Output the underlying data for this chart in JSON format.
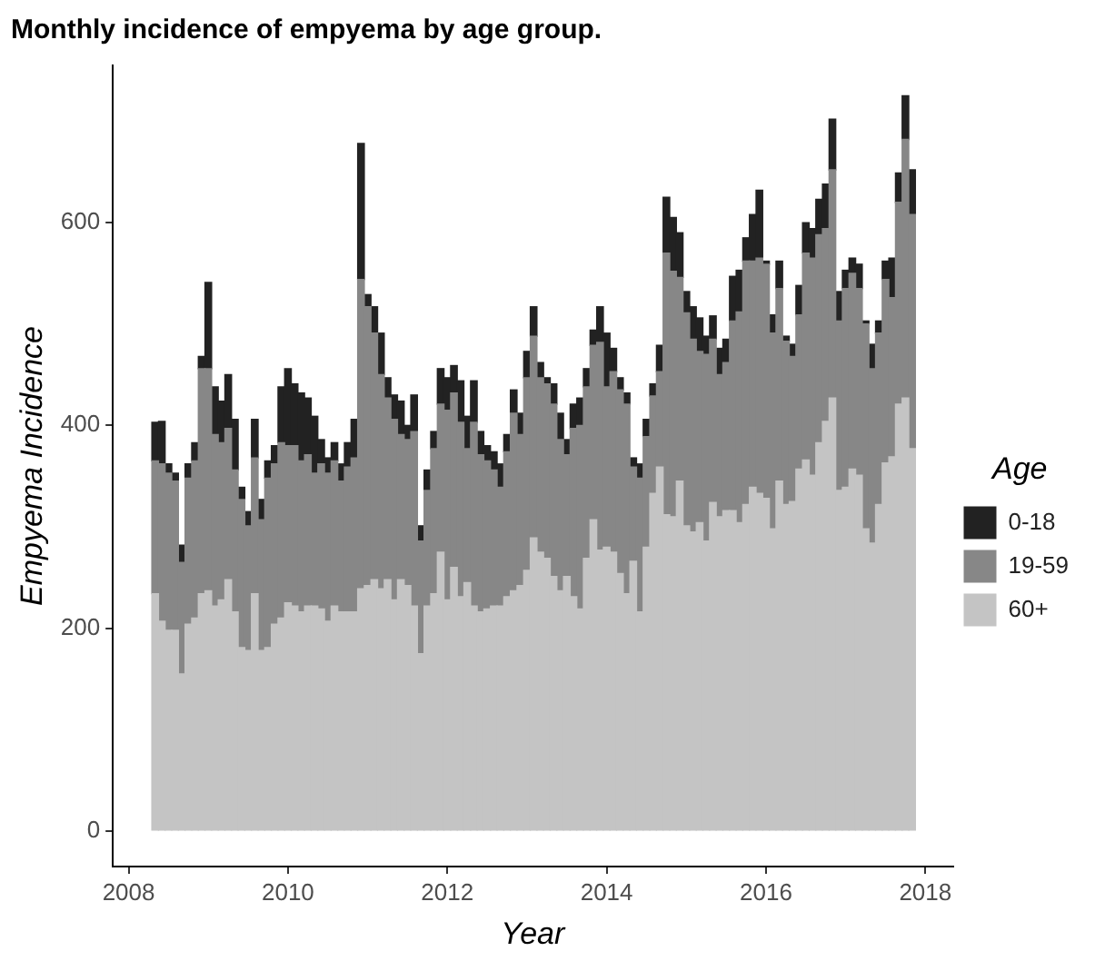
{
  "chart_data": {
    "type": "bar",
    "title": "Monthly incidence of empyema by age group.",
    "xlabel": "Year",
    "ylabel": "Empyema Incidence",
    "legend_title": "Age",
    "legend": "right",
    "grid": false,
    "stacked": true,
    "x": [
      "2008-05",
      "2008-06",
      "2008-07",
      "2008-08",
      "2008-09",
      "2008-10",
      "2008-11",
      "2008-12",
      "2009-01",
      "2009-02",
      "2009-03",
      "2009-04",
      "2009-05",
      "2009-06",
      "2009-07",
      "2009-08",
      "2009-09",
      "2009-10",
      "2009-11",
      "2009-12",
      "2010-01",
      "2010-02",
      "2010-03",
      "2010-04",
      "2010-05",
      "2010-06",
      "2010-07",
      "2010-08",
      "2010-09",
      "2010-10",
      "2010-11",
      "2010-12",
      "2011-01",
      "2011-02",
      "2011-03",
      "2011-04",
      "2011-05",
      "2011-06",
      "2011-07",
      "2011-08",
      "2011-09",
      "2011-10",
      "2011-11",
      "2011-12",
      "2012-01",
      "2012-02",
      "2012-03",
      "2012-04",
      "2012-05",
      "2012-06",
      "2012-07",
      "2012-08",
      "2012-09",
      "2012-10",
      "2012-11",
      "2012-12",
      "2013-01",
      "2013-02",
      "2013-03",
      "2013-04",
      "2013-05",
      "2013-06",
      "2013-07",
      "2013-08",
      "2013-09",
      "2013-10",
      "2013-11",
      "2013-12",
      "2014-01",
      "2014-02",
      "2014-03",
      "2014-04",
      "2014-05",
      "2014-06",
      "2014-07",
      "2014-08",
      "2014-09",
      "2014-10",
      "2014-11",
      "2014-12",
      "2015-01",
      "2015-02",
      "2015-03",
      "2015-04",
      "2015-05",
      "2015-06",
      "2015-07",
      "2015-08",
      "2015-09",
      "2015-10",
      "2015-11",
      "2015-12",
      "2016-01",
      "2016-02",
      "2016-03",
      "2016-04",
      "2016-05",
      "2016-06",
      "2016-07",
      "2016-08",
      "2016-09",
      "2016-10",
      "2016-11",
      "2016-12",
      "2017-01",
      "2017-02",
      "2017-03",
      "2017-04",
      "2017-05",
      "2017-06",
      "2017-07",
      "2017-08",
      "2017-09",
      "2017-10",
      "2017-11"
    ],
    "xlim": [
      "2007-10-20",
      "2018-05-05"
    ],
    "xticks": [
      {
        "value": "2008-01-01",
        "label": "2008"
      },
      {
        "value": "2010-01-01",
        "label": "2010"
      },
      {
        "value": "2012-01-01",
        "label": "2012"
      },
      {
        "value": "2014-01-01",
        "label": "2014"
      },
      {
        "value": "2016-01-01",
        "label": "2016"
      },
      {
        "value": "2018-01-01",
        "label": "2018"
      }
    ],
    "ylim": [
      -35,
      755
    ],
    "yticks": [
      0,
      200,
      400,
      600
    ],
    "series": [
      {
        "name": "60+",
        "color": "#c4c4c4",
        "values": [
          234,
          207,
          198,
          198,
          155,
          204,
          210,
          234,
          237,
          222,
          228,
          248,
          216,
          181,
          178,
          234,
          178,
          181,
          204,
          210,
          225,
          222,
          216,
          222,
          222,
          219,
          207,
          222,
          216,
          216,
          216,
          239,
          242,
          248,
          239,
          248,
          228,
          248,
          242,
          222,
          175,
          222,
          234,
          275,
          228,
          260,
          231,
          245,
          222,
          216,
          219,
          222,
          222,
          231,
          237,
          242,
          257,
          289,
          275,
          269,
          251,
          237,
          251,
          231,
          219,
          269,
          307,
          277,
          280,
          275,
          254,
          234,
          266,
          216,
          280,
          333,
          359,
          312,
          310,
          345,
          301,
          295,
          304,
          286,
          324,
          310,
          316,
          316,
          304,
          322,
          339,
          333,
          328,
          298,
          345,
          322,
          325,
          357,
          366,
          351,
          383,
          404,
          427,
          336,
          339,
          357,
          351,
          298,
          284,
          322,
          363,
          369,
          421,
          427,
          377
        ]
      },
      {
        "name": "19-59",
        "color": "#878787",
        "values": [
          131,
          155,
          155,
          147,
          110,
          144,
          155,
          222,
          219,
          169,
          155,
          149,
          140,
          146,
          123,
          134,
          129,
          167,
          158,
          173,
          155,
          158,
          149,
          149,
          131,
          143,
          146,
          143,
          129,
          143,
          152,
          305,
          275,
          243,
          211,
          179,
          178,
          143,
          144,
          172,
          111,
          114,
          143,
          146,
          187,
          172,
          172,
          132,
          181,
          155,
          146,
          134,
          117,
          143,
          175,
          149,
          190,
          199,
          172,
          172,
          170,
          149,
          120,
          166,
          181,
          169,
          172,
          205,
          158,
          178,
          181,
          187,
          93,
          132,
          109,
          96,
          94,
          258,
          242,
          201,
          210,
          190,
          169,
          184,
          161,
          140,
          146,
          187,
          208,
          240,
          223,
          232,
          231,
          193,
          190,
          161,
          143,
          152,
          204,
          214,
          205,
          190,
          225,
          167,
          196,
          193,
          184,
          202,
          172,
          169,
          181,
          157,
          199,
          255,
          231
        ]
      },
      {
        "name": "0-18",
        "color": "#222222",
        "values": [
          38,
          42,
          9,
          8,
          17,
          14,
          18,
          12,
          85,
          47,
          41,
          53,
          50,
          12,
          14,
          38,
          20,
          17,
          18,
          55,
          76,
          61,
          67,
          56,
          56,
          24,
          15,
          18,
          17,
          24,
          38,
          134,
          12,
          26,
          41,
          20,
          24,
          33,
          14,
          36,
          15,
          20,
          17,
          35,
          32,
          27,
          41,
          32,
          41,
          23,
          15,
          18,
          23,
          17,
          23,
          21,
          26,
          29,
          15,
          6,
          20,
          26,
          15,
          24,
          27,
          18,
          15,
          35,
          53,
          23,
          12,
          11,
          9,
          14,
          17,
          12,
          26,
          55,
          53,
          44,
          21,
          32,
          33,
          18,
          23,
          26,
          23,
          44,
          41,
          23,
          46,
          67,
          3,
          18,
          27,
          5,
          12,
          29,
          30,
          29,
          35,
          44,
          50,
          29,
          18,
          15,
          24,
          3,
          24,
          12,
          18,
          39,
          29,
          43,
          44
        ]
      }
    ]
  }
}
